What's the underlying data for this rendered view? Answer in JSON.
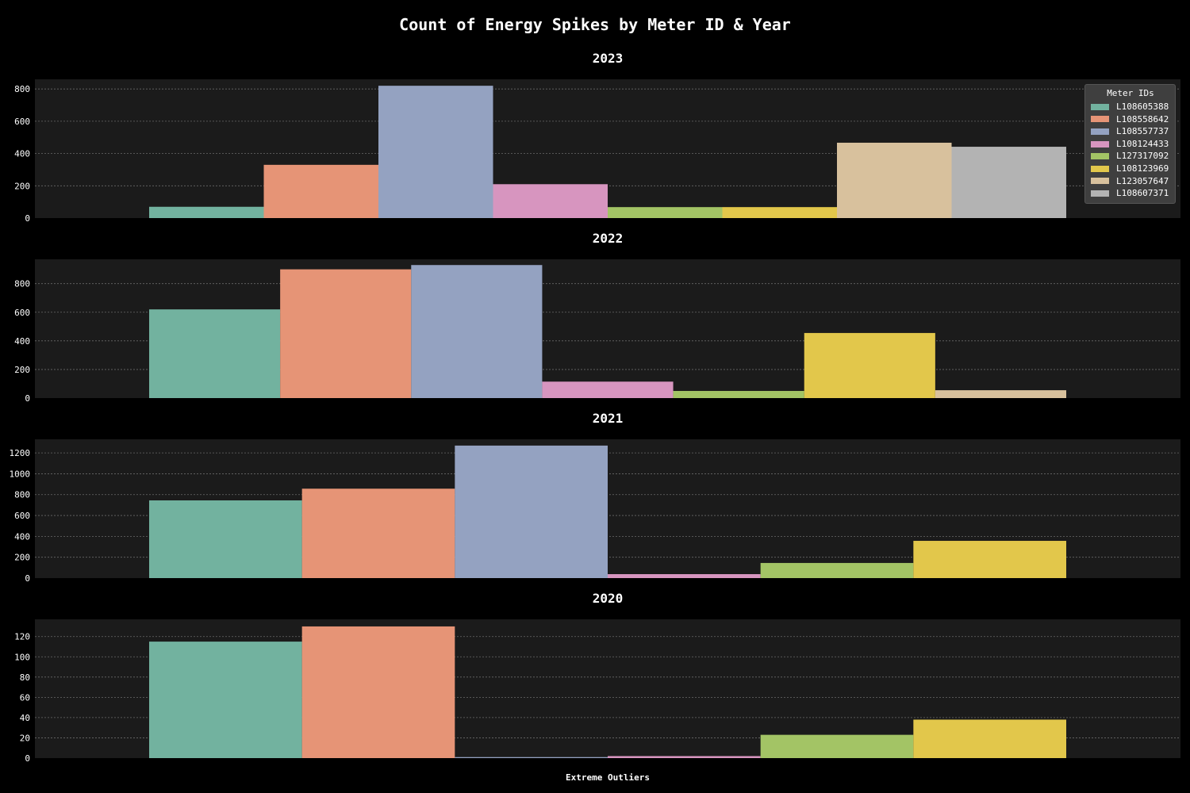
{
  "chart_data": {
    "type": "bar",
    "title": "Count of Energy Spikes by Meter ID & Year",
    "xlabel": "Extreme Outliers",
    "legend": {
      "title": "Meter IDs",
      "placement": "top-right",
      "entries": [
        "L108605388",
        "L108558642",
        "L108557737",
        "L108124433",
        "L127317092",
        "L108123969",
        "L123057647",
        "L108607371"
      ]
    },
    "colors": {
      "L108605388": "#72b29f",
      "L108558642": "#e69476",
      "L108557737": "#94a2c1",
      "L108124433": "#d795bf",
      "L127317092": "#a3c465",
      "L108123969": "#e2c74b",
      "L123057647": "#d8c19d",
      "L108607371": "#b3b3b3"
    },
    "grid": true,
    "panels": [
      {
        "year": "2023",
        "ylim": [
          0,
          860
        ],
        "yticks": [
          0,
          200,
          400,
          600,
          800
        ],
        "series": [
          {
            "meter": "L108605388",
            "value": 70
          },
          {
            "meter": "L108558642",
            "value": 330
          },
          {
            "meter": "L108557737",
            "value": 820
          },
          {
            "meter": "L108124433",
            "value": 210
          },
          {
            "meter": "L127317092",
            "value": 68
          },
          {
            "meter": "L108123969",
            "value": 68
          },
          {
            "meter": "L123057647",
            "value": 467
          },
          {
            "meter": "L108607371",
            "value": 442
          }
        ]
      },
      {
        "year": "2022",
        "ylim": [
          0,
          970
        ],
        "yticks": [
          0,
          200,
          400,
          600,
          800
        ],
        "series": [
          {
            "meter": "L108605388",
            "value": 620
          },
          {
            "meter": "L108558642",
            "value": 900
          },
          {
            "meter": "L108557737",
            "value": 930
          },
          {
            "meter": "L108124433",
            "value": 115
          },
          {
            "meter": "L127317092",
            "value": 50
          },
          {
            "meter": "L108123969",
            "value": 455
          },
          {
            "meter": "L123057647",
            "value": 55
          }
        ]
      },
      {
        "year": "2021",
        "ylim": [
          0,
          1330
        ],
        "yticks": [
          0,
          200,
          400,
          600,
          800,
          1000,
          1200
        ],
        "series": [
          {
            "meter": "L108605388",
            "value": 745
          },
          {
            "meter": "L108558642",
            "value": 857
          },
          {
            "meter": "L108557737",
            "value": 1270
          },
          {
            "meter": "L108124433",
            "value": 38
          },
          {
            "meter": "L127317092",
            "value": 145
          },
          {
            "meter": "L108123969",
            "value": 357
          }
        ]
      },
      {
        "year": "2020",
        "ylim": [
          0,
          137
        ],
        "yticks": [
          0,
          20,
          40,
          60,
          80,
          100,
          120
        ],
        "series": [
          {
            "meter": "L108605388",
            "value": 115
          },
          {
            "meter": "L108558642",
            "value": 130
          },
          {
            "meter": "L108557737",
            "value": 1
          },
          {
            "meter": "L108124433",
            "value": 2
          },
          {
            "meter": "L127317092",
            "value": 23
          },
          {
            "meter": "L108123969",
            "value": 38
          }
        ]
      }
    ]
  }
}
